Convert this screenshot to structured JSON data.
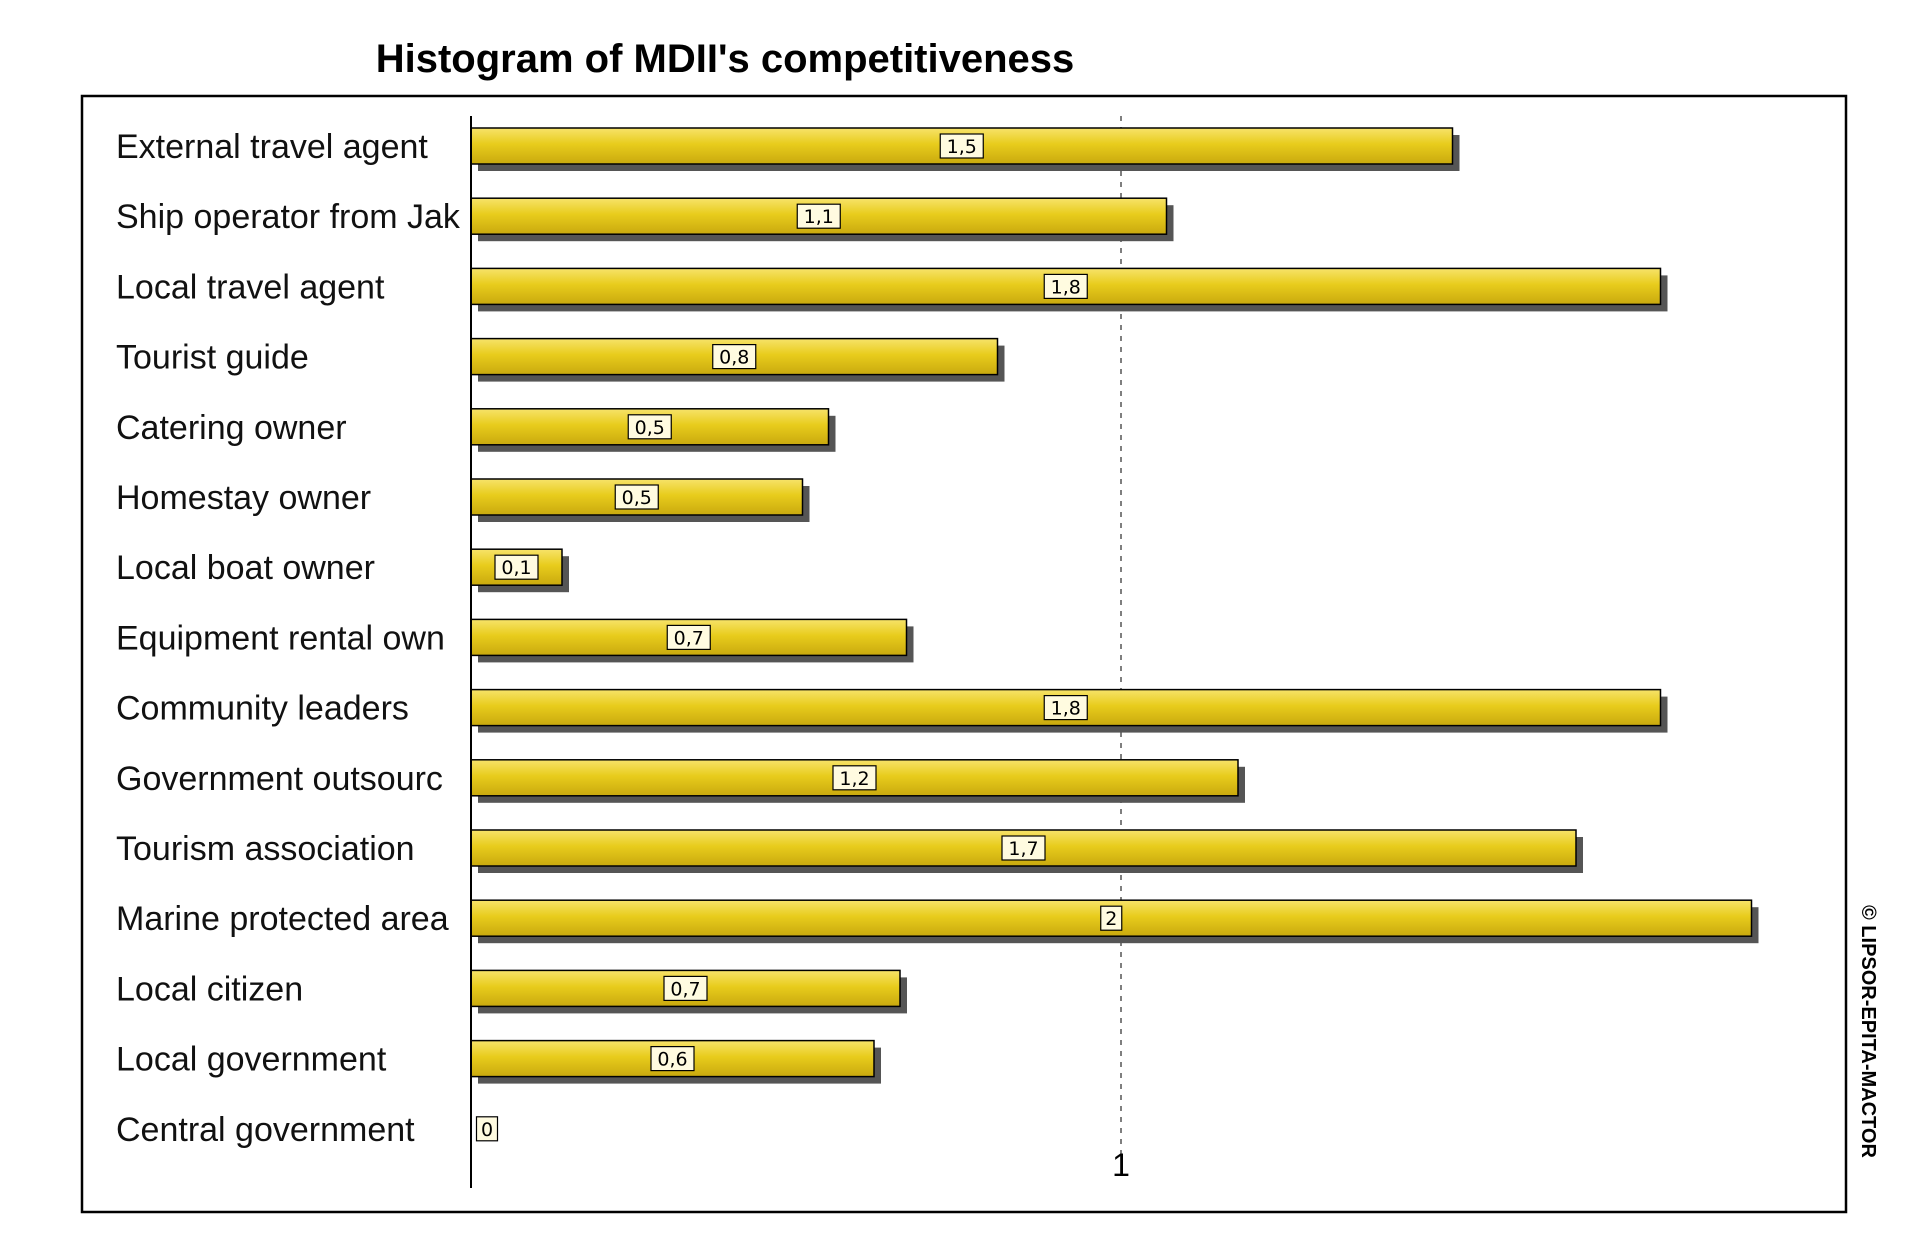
{
  "chart_data": {
    "type": "bar",
    "orientation": "horizontal",
    "title": "Histogram of MDII's competitiveness",
    "categories": [
      "External travel agent",
      "Ship operator  from Jak",
      "Local travel agent",
      "Tourist guide",
      "Catering owner",
      "Homestay owner",
      "Local boat owner",
      "Equipment  rental own",
      "Community leaders",
      "Government outsourc",
      "Tourism association",
      "Marine protected area",
      "Local citizen",
      "Local government",
      "Central government"
    ],
    "values": [
      1.51,
      1.07,
      1.83,
      0.81,
      0.55,
      0.51,
      0.14,
      0.67,
      1.83,
      1.18,
      1.7,
      1.97,
      0.66,
      0.62,
      0.0
    ],
    "value_labels": [
      "1,5",
      "1,1",
      "1,8",
      "0,8",
      "0,5",
      "0,5",
      "0,1",
      "0,7",
      "1,8",
      "1,2",
      "1,7",
      "2",
      "0,7",
      "0,6",
      "0"
    ],
    "xlim": [
      0,
      2.0
    ],
    "x_ticks": [
      {
        "value": 1,
        "label": "1"
      }
    ],
    "grid": "dashed line at x=1",
    "legend": "none",
    "bar_color": "#e8cc1c",
    "bar_shadow_color": "#555555",
    "copyright": "© LIPSOR-EPITA-MACTOR"
  }
}
